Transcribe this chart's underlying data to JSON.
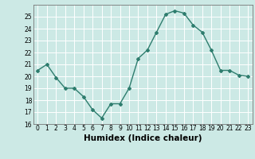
{
  "x": [
    0,
    1,
    2,
    3,
    4,
    5,
    6,
    7,
    8,
    9,
    10,
    11,
    12,
    13,
    14,
    15,
    16,
    17,
    18,
    19,
    20,
    21,
    22,
    23
  ],
  "y": [
    20.5,
    21.0,
    19.9,
    19.0,
    19.0,
    18.3,
    17.2,
    16.5,
    17.7,
    17.7,
    19.0,
    21.5,
    22.2,
    23.7,
    25.2,
    25.5,
    25.3,
    24.3,
    23.7,
    22.2,
    20.5,
    20.5,
    20.1,
    20.0
  ],
  "line_color": "#2e7d6e",
  "marker": "D",
  "marker_size": 2.0,
  "bg_color": "#cce9e5",
  "grid_color": "#ffffff",
  "xlabel": "Humidex (Indice chaleur)",
  "xlim": [
    -0.5,
    23.5
  ],
  "ylim": [
    16,
    26
  ],
  "yticks": [
    16,
    17,
    18,
    19,
    20,
    21,
    22,
    23,
    24,
    25
  ],
  "xticks": [
    0,
    1,
    2,
    3,
    4,
    5,
    6,
    7,
    8,
    9,
    10,
    11,
    12,
    13,
    14,
    15,
    16,
    17,
    18,
    19,
    20,
    21,
    22,
    23
  ],
  "tick_fontsize": 5.5,
  "xlabel_fontsize": 7.5,
  "line_width": 1.0
}
